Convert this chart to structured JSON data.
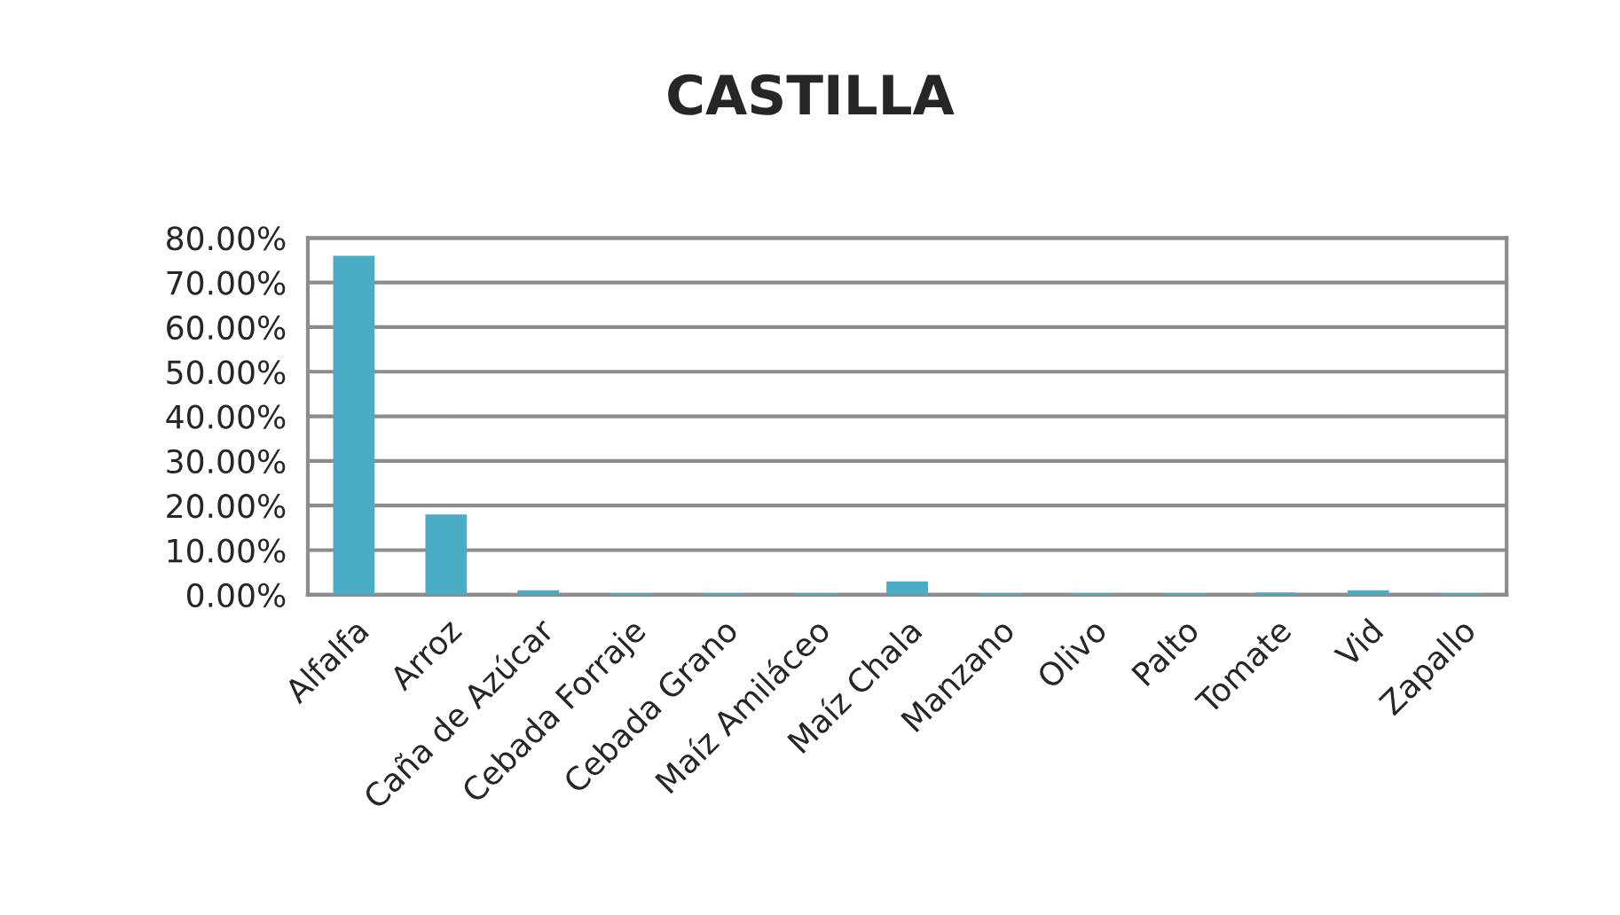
{
  "chart_data": {
    "type": "bar",
    "title": "CASTILLA",
    "categories": [
      "Alfalfa",
      "Arroz",
      "Caña de Azúcar",
      "Cebada Forraje",
      "Cebada Grano",
      "Maíz Amiláceo",
      "Maíz Chala",
      "Manzano",
      "Olivo",
      "Palto",
      "Tomate",
      "Vid",
      "Zapallo"
    ],
    "values": [
      76,
      18,
      1,
      0.3,
      0.3,
      0.3,
      3,
      0.3,
      0.3,
      0.3,
      0.5,
      1,
      0.3
    ],
    "color": "#4bacc6",
    "ylim": [
      0,
      80
    ],
    "yticks": [
      {
        "value": 0,
        "label": "0.00%"
      },
      {
        "value": 10,
        "label": "10.00%"
      },
      {
        "value": 20,
        "label": "20.00%"
      },
      {
        "value": 30,
        "label": "30.00%"
      },
      {
        "value": 40,
        "label": "40.00%"
      },
      {
        "value": 50,
        "label": "50.00%"
      },
      {
        "value": 60,
        "label": "60.00%"
      },
      {
        "value": 70,
        "label": "70.00%"
      },
      {
        "value": 80,
        "label": "80.00%"
      }
    ],
    "grid": "y"
  }
}
